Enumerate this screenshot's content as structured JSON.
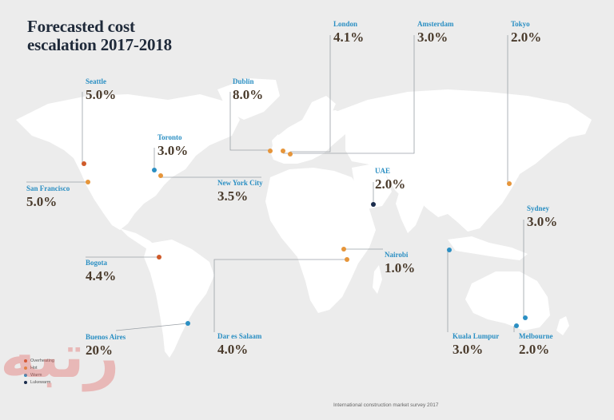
{
  "title": "Forecasted cost escalation 2017-2018",
  "source": "International construction market survey 2017",
  "watermark": "رتبه",
  "colors": {
    "background": "#ececec",
    "land": "#ffffff",
    "title": "#1f2a3a",
    "label": "#2b8fc3",
    "value": "#4a3b2c",
    "leader": "#9aa0a6",
    "overheating": "#cf5b2a",
    "hot": "#e6953a",
    "warm": "#2b8fc3",
    "lukewarm": "#1a2c4c"
  },
  "legend": [
    {
      "label": "Overheating",
      "color": "#cf5b2a"
    },
    {
      "label": "Hot",
      "color": "#e6953a"
    },
    {
      "label": "Warm",
      "color": "#2b8fc3"
    },
    {
      "label": "Lukewarm",
      "color": "#1a2c4c"
    }
  ],
  "cities": [
    {
      "name": "London",
      "value": "4.1%",
      "status": "hot"
    },
    {
      "name": "Amsterdam",
      "value": "3.0%",
      "status": "hot"
    },
    {
      "name": "Tokyo",
      "value": "2.0%",
      "status": "hot"
    },
    {
      "name": "Seattle",
      "value": "5.0%",
      "status": "overheating"
    },
    {
      "name": "Dublin",
      "value": "8.0%",
      "status": "hot"
    },
    {
      "name": "Toronto",
      "value": "3.0%",
      "status": "warm"
    },
    {
      "name": "UAE",
      "value": "2.0%",
      "status": "lukewarm"
    },
    {
      "name": "San Francisco",
      "value": "5.0%",
      "status": "hot"
    },
    {
      "name": "New York City",
      "value": "3.5%",
      "status": "hot"
    },
    {
      "name": "Sydney",
      "value": "3.0%",
      "status": "warm"
    },
    {
      "name": "Bogota",
      "value": "4.4%",
      "status": "overheating"
    },
    {
      "name": "Nairobi",
      "value": "1.0%",
      "status": "hot"
    },
    {
      "name": "Buenos Aires",
      "value": "20%",
      "status": "warm"
    },
    {
      "name": "Dar es Salaam",
      "value": "4.0%",
      "status": "hot"
    },
    {
      "name": "Kuala Lumpur",
      "value": "3.0%",
      "status": "warm"
    },
    {
      "name": "Melbourne",
      "value": "2.0%",
      "status": "warm"
    }
  ]
}
